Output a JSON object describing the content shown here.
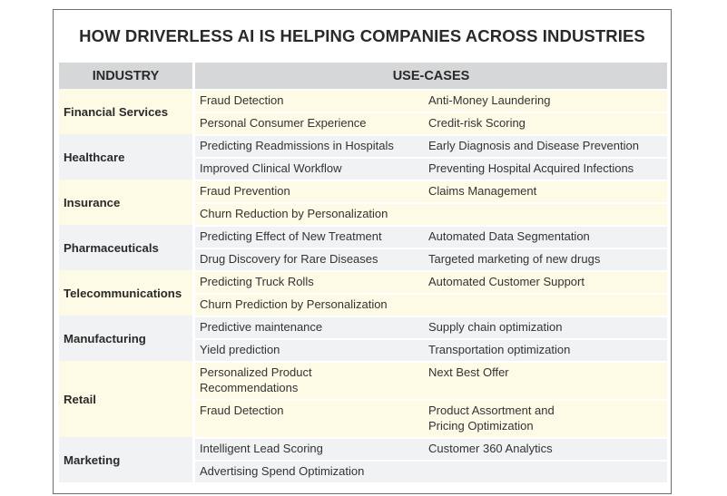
{
  "title": "HOW DRIVERLESS AI IS HELPING COMPANIES ACROSS INDUSTRIES",
  "headers": {
    "industry": "INDUSTRY",
    "use_cases": "USE-CASES"
  },
  "colors": {
    "header_bg": "#d6d7d8",
    "band_yellow": "#fdfbe6",
    "band_gray": "#f1f2f3",
    "border": "#6e6e6e"
  },
  "industries": [
    {
      "name": "Financial Services",
      "rows": [
        [
          "Fraud Detection",
          "Anti-Money Laundering"
        ],
        [
          "Personal Consumer Experience",
          "Credit-risk Scoring"
        ]
      ]
    },
    {
      "name": "Healthcare",
      "rows": [
        [
          "Predicting Readmissions in Hospitals",
          "Early Diagnosis and Disease Prevention"
        ],
        [
          "Improved Clinical Workflow",
          "Preventing Hospital Acquired Infections"
        ]
      ]
    },
    {
      "name": "Insurance",
      "rows": [
        [
          "Fraud Prevention",
          "Claims Management"
        ],
        [
          "Churn Reduction by Personalization",
          ""
        ]
      ]
    },
    {
      "name": "Pharmaceuticals",
      "rows": [
        [
          "Predicting Effect of New Treatment",
          "Automated Data Segmentation"
        ],
        [
          "Drug Discovery for Rare Diseases",
          "Targeted marketing of new drugs"
        ]
      ]
    },
    {
      "name": "Telecommunications",
      "rows": [
        [
          "Predicting Truck Rolls",
          "Automated Customer Support"
        ],
        [
          "Churn Prediction by Personalization",
          ""
        ]
      ]
    },
    {
      "name": "Manufacturing",
      "rows": [
        [
          "Predictive maintenance",
          "Supply chain optimization"
        ],
        [
          "Yield prediction",
          "Transportation optimization"
        ]
      ]
    },
    {
      "name": "Retail",
      "rows": [
        [
          "Personalized Product\nRecommendations",
          "Next Best Offer"
        ],
        [
          "Fraud Detection",
          "Product Assortment and\nPricing Optimization"
        ]
      ]
    },
    {
      "name": "Marketing",
      "rows": [
        [
          "Intelligent Lead Scoring",
          "Customer 360 Analytics"
        ],
        [
          "Advertising Spend Optimization",
          ""
        ]
      ]
    }
  ]
}
